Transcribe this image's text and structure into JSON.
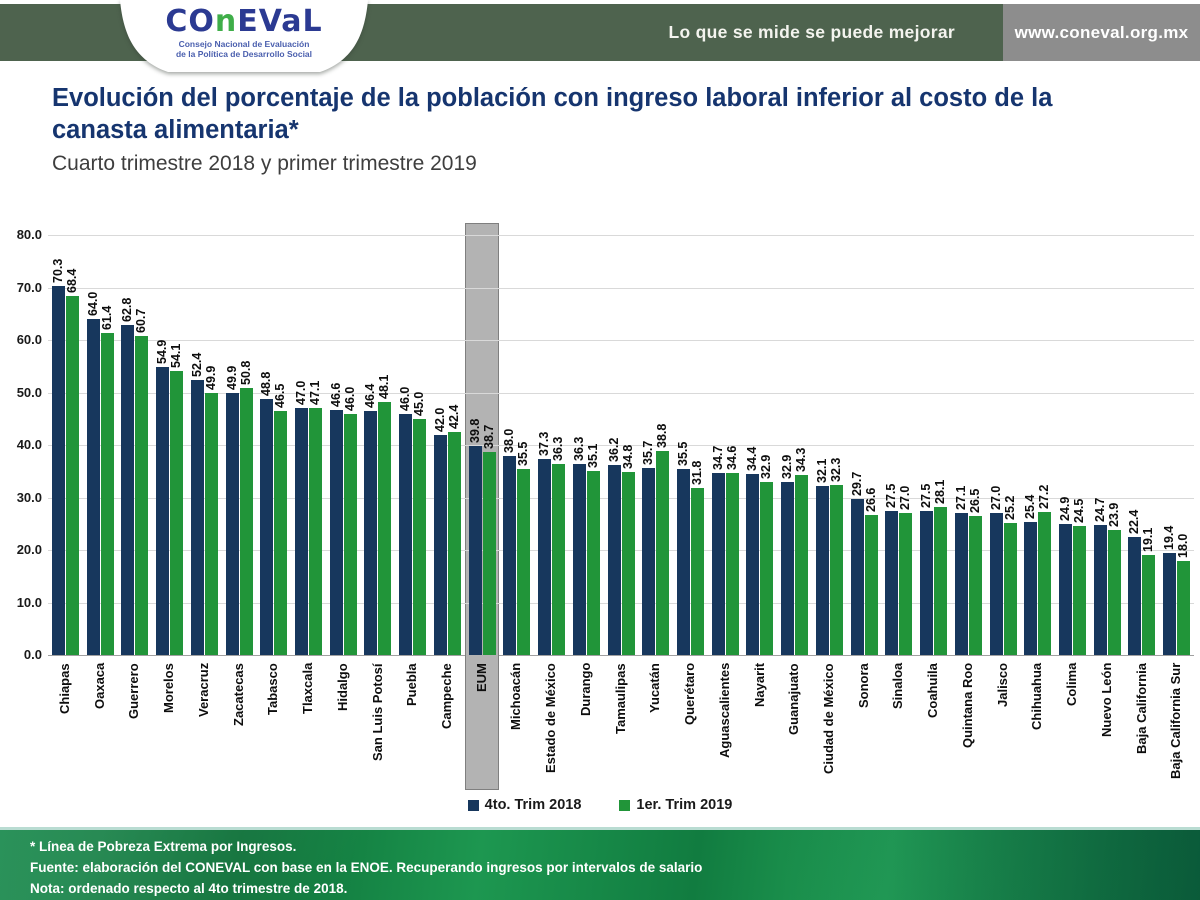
{
  "header": {
    "tagline": "Lo que se mide se puede mejorar",
    "website": "www.coneval.org.mx",
    "logo": {
      "part1": "CO",
      "part2": "n",
      "part3": "EVaL",
      "sub1": "Consejo Nacional de Evaluación",
      "sub2": "de la Política de Desarrollo Social"
    }
  },
  "title": {
    "main": "Evolución del porcentaje de la población con ingreso laboral inferior al costo de la canasta alimentaria*",
    "subtitle": "Cuarto trimestre 2018 y primer trimestre 2019"
  },
  "chart_data": {
    "type": "bar",
    "title": "Evolución del porcentaje de la población con ingreso laboral inferior al costo de la canasta alimentaria",
    "categories": [
      "Chiapas",
      "Oaxaca",
      "Guerrero",
      "Morelos",
      "Veracruz",
      "Zacatecas",
      "Tabasco",
      "Tlaxcala",
      "Hidalgo",
      "San Luis Potosí",
      "Puebla",
      "Campeche",
      "EUM",
      "Michoacán",
      "Estado de México",
      "Durango",
      "Tamaulipas",
      "Yucatán",
      "Querétaro",
      "Aguascalientes",
      "Nayarit",
      "Guanajuato",
      "Ciudad de México",
      "Sonora",
      "Sinaloa",
      "Coahuila",
      "Quintana Roo",
      "Jalisco",
      "Chihuahua",
      "Colima",
      "Nuevo León",
      "Baja California",
      "Baja California Sur"
    ],
    "series": [
      {
        "name": "4to. Trim 2018",
        "color": "#17375d",
        "values": [
          70.3,
          64.0,
          62.8,
          54.9,
          52.4,
          49.9,
          48.8,
          47.0,
          46.6,
          46.4,
          46.0,
          42.0,
          39.8,
          38.0,
          37.3,
          36.3,
          36.2,
          35.7,
          35.5,
          34.7,
          34.4,
          32.9,
          32.1,
          29.7,
          27.5,
          27.5,
          27.1,
          27.0,
          25.4,
          24.9,
          24.7,
          22.4,
          19.4
        ]
      },
      {
        "name": "1er. Trim 2019",
        "color": "#219539",
        "values": [
          68.4,
          61.4,
          60.7,
          54.1,
          49.9,
          50.8,
          46.5,
          47.1,
          46.0,
          48.1,
          45.0,
          42.4,
          38.7,
          35.5,
          36.3,
          35.1,
          34.8,
          38.8,
          31.8,
          34.6,
          32.9,
          34.3,
          32.3,
          26.6,
          27.0,
          28.1,
          26.5,
          25.2,
          27.2,
          24.5,
          23.9,
          19.1,
          18.0
        ]
      }
    ],
    "xlabel": "",
    "ylabel": "",
    "ylim": [
      0,
      80
    ],
    "ytick_step": 10,
    "grid": true,
    "legend_position": "bottom",
    "highlight_category": "EUM",
    "highlight_color": "#b3b3b3",
    "value_label_format": "one decimal, rotated vertical"
  },
  "footer": {
    "line1": "* Línea de Pobreza Extrema por Ingresos.",
    "line2": "Fuente: elaboración del CONEVAL con base en la ENOE. Recuperando ingresos  por intervalos de salario",
    "line3": "Nota: ordenado respecto al 4to trimestre de 2018."
  }
}
